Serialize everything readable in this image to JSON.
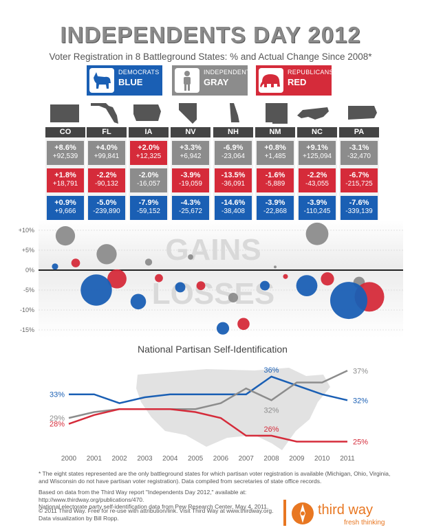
{
  "header": {
    "title": "INDEPENDENTS DAY 2012",
    "subtitle": "Voter Registration in 8 Battleground States: % and Actual Change Since 2008*"
  },
  "legend": [
    {
      "line1": "DEMOCRATS",
      "line2": "BLUE",
      "color": "#1a5fb4",
      "icon": "donkey-icon"
    },
    {
      "line1": "INDEPENDENTS",
      "line2": "GRAY",
      "color": "#8c8c8c",
      "icon": "person-icon"
    },
    {
      "line1": "REPUBLICANS",
      "line2": "RED",
      "color": "#d52b3a",
      "icon": "elephant-icon"
    }
  ],
  "states": [
    {
      "code": "CO",
      "ind": {
        "pct": "+8.6%",
        "abs": "+92,539"
      },
      "rep": {
        "pct": "+1.8%",
        "abs": "+18,791"
      },
      "dem": {
        "pct": "+0.9%",
        "abs": "+9,666"
      }
    },
    {
      "code": "FL",
      "ind": {
        "pct": "+4.0%",
        "abs": "+99,841"
      },
      "rep": {
        "pct": "-2.2%",
        "abs": "-90,132"
      },
      "dem": {
        "pct": "-5.0%",
        "abs": "-239,890"
      }
    },
    {
      "code": "IA",
      "ind": {
        "pct": "+2.0%",
        "abs": "+12,325"
      },
      "rep": {
        "pct": "-2.0%",
        "abs": "-16,057"
      },
      "dem": {
        "pct": "-7.9%",
        "abs": "-59,152"
      }
    },
    {
      "code": "NV",
      "ind": {
        "pct": "+3.3%",
        "abs": "+6,942"
      },
      "rep": {
        "pct": "-3.9%",
        "abs": "-19,059"
      },
      "dem": {
        "pct": "-4.3%",
        "abs": "-25,672"
      }
    },
    {
      "code": "NH",
      "ind": {
        "pct": "-6.9%",
        "abs": "-23,064"
      },
      "rep": {
        "pct": "-13.5%",
        "abs": "-36,091"
      },
      "dem": {
        "pct": "-14.6%",
        "abs": "-38,408"
      }
    },
    {
      "code": "NM",
      "ind": {
        "pct": "+0.8%",
        "abs": "+1,485"
      },
      "rep": {
        "pct": "-1.6%",
        "abs": "-5,889"
      },
      "dem": {
        "pct": "-3.9%",
        "abs": "-22,868"
      }
    },
    {
      "code": "NC",
      "ind": {
        "pct": "+9.1%",
        "abs": "+125,094"
      },
      "rep": {
        "pct": "-2.2%",
        "abs": "-43,055"
      },
      "dem": {
        "pct": "-3.9%",
        "abs": "-110,245"
      }
    },
    {
      "code": "PA",
      "ind": {
        "pct": "-3.1%",
        "abs": "-32,470"
      },
      "rep": {
        "pct": "-6.7%",
        "abs": "-215,725"
      },
      "dem": {
        "pct": "-7.6%",
        "abs": "-339,139"
      }
    }
  ],
  "chart_data": [
    {
      "type": "scatter",
      "description_labels": {
        "gains": "GAINS",
        "losses": "LOSSES"
      },
      "y_ticks": [
        "+10%",
        "+5%",
        "0%",
        "-5%",
        "-10%",
        "-15%"
      ],
      "y_tick_values": [
        10,
        5,
        0,
        -5,
        -10,
        -15
      ],
      "ylim": [
        -15,
        10
      ],
      "categories": [
        "CO",
        "FL",
        "IA",
        "NV",
        "NH",
        "NM",
        "NC",
        "PA"
      ],
      "series": [
        {
          "name": "INDEPENDENTS",
          "color": "#8c8c8c",
          "values": [
            8.6,
            4.0,
            2.0,
            3.3,
            -6.9,
            0.8,
            9.1,
            -3.1
          ],
          "sizes": [
            92539,
            99841,
            12325,
            6942,
            23064,
            1485,
            125094,
            32470
          ]
        },
        {
          "name": "REPUBLICANS",
          "color": "#d52b3a",
          "values": [
            1.8,
            -2.2,
            -2.0,
            -3.9,
            -13.5,
            -1.6,
            -2.2,
            -6.7
          ],
          "sizes": [
            18791,
            90132,
            16057,
            19059,
            36091,
            5889,
            43055,
            215725
          ]
        },
        {
          "name": "DEMOCRATS",
          "color": "#1a5fb4",
          "values": [
            0.9,
            -5.0,
            -7.9,
            -4.3,
            -14.6,
            -3.9,
            -3.9,
            -7.6
          ],
          "sizes": [
            9666,
            239890,
            59152,
            25672,
            38408,
            22868,
            110245,
            339139
          ]
        }
      ]
    },
    {
      "type": "line",
      "title": "National Partisan Self-Identification",
      "x": [
        "2000",
        "2001",
        "2002",
        "2003",
        "2004",
        "2005",
        "2006",
        "2007",
        "2008",
        "2009",
        "2010",
        "2011"
      ],
      "ylim": [
        20,
        40
      ],
      "series": [
        {
          "name": "DEMOCRATS",
          "color": "#1a5fb4",
          "values": [
            33,
            33,
            31.5,
            32.5,
            33,
            33,
            33,
            33,
            36,
            34.5,
            33,
            32
          ],
          "labels": [
            {
              "index": 0,
              "text": "33%"
            },
            {
              "index": 8,
              "text": "36%"
            },
            {
              "index": 11,
              "text": "32%"
            }
          ]
        },
        {
          "name": "INDEPENDENTS",
          "color": "#8c8c8c",
          "values": [
            29,
            30,
            30.5,
            30.5,
            30.5,
            30.5,
            31.5,
            34,
            32,
            35,
            35,
            37
          ],
          "labels": [
            {
              "index": 0,
              "text": "29%"
            },
            {
              "index": 8,
              "text": "32%"
            },
            {
              "index": 11,
              "text": "37%"
            }
          ]
        },
        {
          "name": "REPUBLICANS",
          "color": "#d52b3a",
          "values": [
            28,
            29.5,
            30.5,
            30.5,
            30.5,
            30,
            29,
            26,
            26,
            25,
            25,
            25
          ],
          "labels": [
            {
              "index": 0,
              "text": "28%"
            },
            {
              "index": 8,
              "text": "26%"
            },
            {
              "index": 11,
              "text": "25%"
            }
          ]
        }
      ]
    }
  ],
  "footer": {
    "note": "* The eight states represented are the only battleground states for which partisan voter registration is available (Michigan, Ohio, Virginia, and Wisconsin do not have partisan voter registration). Data compiled from secretaries of state office records.",
    "source_prefix": "Based on data from the Third Way report \"Independents Day 2012,\" available at: ",
    "source_link": "http://www.thirdway.org/publications/470",
    "source_suffix": ".",
    "source_line2": "National electorate party self-identification data from Pew Research Center, May 4, 2011.",
    "copyright_prefix": "© 2011 Third Way. Free for re-use with attribution/link. Visit Third Way at ",
    "copyright_link": "www.thirdway.org",
    "copyright_suffix": ".",
    "credit": "Data visualization by Bill Ropp."
  },
  "logo": {
    "name": "third way",
    "tagline": "fresh thinking",
    "color": "#e87722"
  }
}
